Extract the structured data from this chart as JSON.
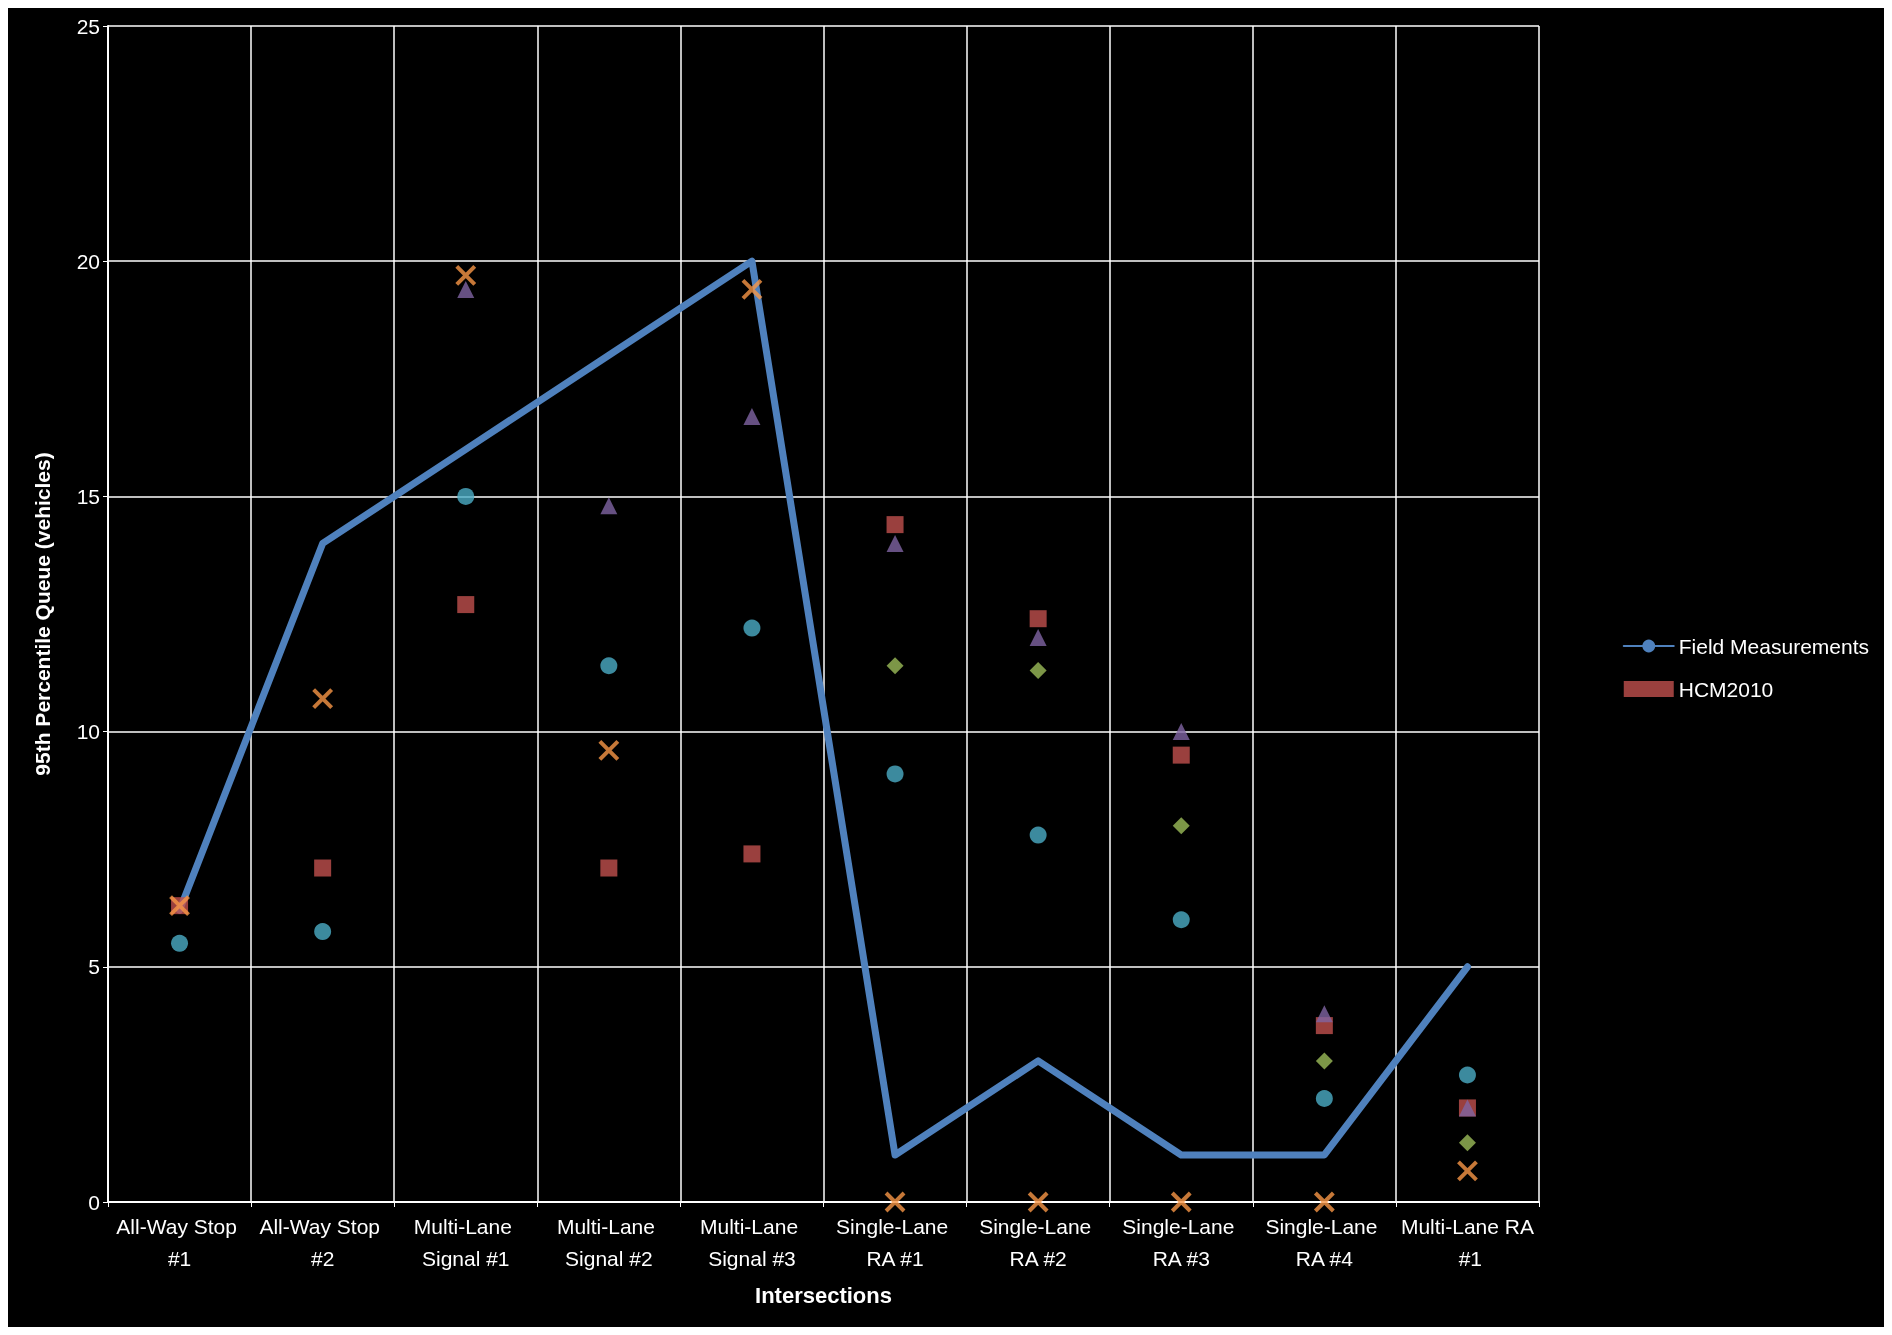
{
  "chart_data": {
    "type": "scatter",
    "xlabel": "Intersections",
    "ylabel": "95th Percentile Queue (vehicles)",
    "categories": [
      "All-Way Stop #1",
      "All-Way Stop #2",
      "Multi-Lane Signal #1",
      "Multi-Lane Signal #2",
      "Multi-Lane Signal #3",
      "Single-Lane RA #1",
      "Single-Lane RA #2",
      "Single-Lane RA #3",
      "Single-Lane RA #4",
      "Multi-Lane RA #1"
    ],
    "ylim": [
      0,
      25
    ],
    "yticks": [
      0,
      5,
      10,
      15,
      20,
      25
    ],
    "grid": true,
    "legend": "right",
    "series": [
      {
        "name": "Field Measurements",
        "type": "line",
        "marker": "none",
        "line_style": "solid",
        "color": "#4f81bd",
        "values": [
          6.2,
          14,
          16,
          18,
          20,
          1,
          3,
          1,
          1,
          5
        ]
      },
      {
        "name": "HCM2010",
        "marker": "square",
        "color": "#c0504d",
        "values": [
          6.3,
          7.1,
          12.7,
          7.1,
          7.4,
          14.4,
          12.4,
          9.5,
          3.75,
          2.0
        ]
      },
      {
        "marker": "diamond",
        "color": "#9bbb59",
        "values": [
          null,
          null,
          null,
          null,
          null,
          11.4,
          11.3,
          8.0,
          3.0,
          1.26
        ]
      },
      {
        "marker": "triangle",
        "color": "#8064a2",
        "values": [
          null,
          null,
          19.4,
          14.8,
          16.7,
          14.0,
          12.0,
          10.0,
          4.0,
          2.0
        ]
      },
      {
        "marker": "circle",
        "color": "#4bacc6",
        "values": [
          5.5,
          5.75,
          15.0,
          11.4,
          12.2,
          9.1,
          7.8,
          6.0,
          2.2,
          2.7
        ]
      },
      {
        "marker": "cross",
        "color": "#f79646",
        "values": [
          6.3,
          10.7,
          19.7,
          9.6,
          19.4,
          0,
          0,
          0,
          0,
          0.66
        ]
      }
    ]
  }
}
